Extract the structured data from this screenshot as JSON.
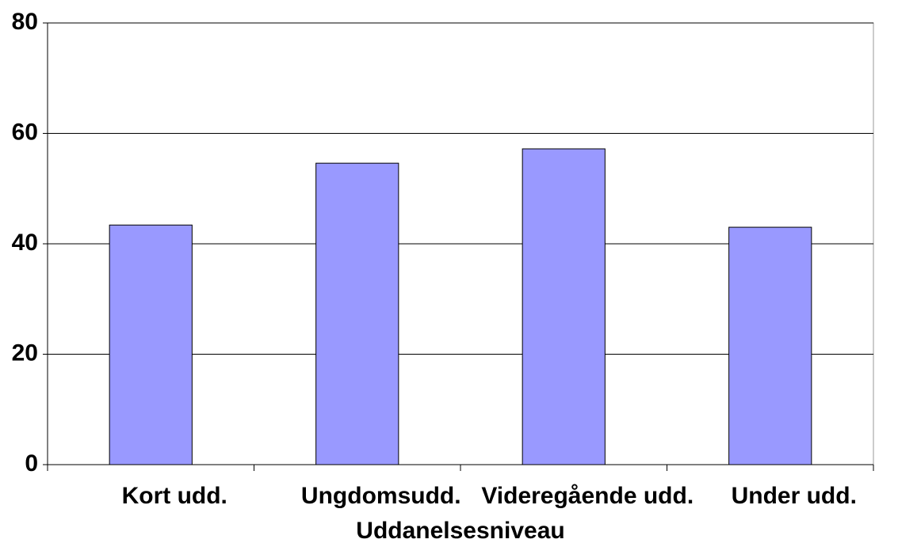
{
  "chart_data": {
    "type": "bar",
    "x_label": "Uddanelsesniveau",
    "categories": [
      "Kort udd.",
      "Ungdomsudd.",
      "Videregående udd.",
      "Under udd."
    ],
    "values": [
      43.4,
      54.6,
      57.2,
      43.0
    ],
    "color": "#9999ff",
    "ylim": [
      0,
      80
    ],
    "yticks": [
      0,
      20,
      40,
      60,
      80
    ],
    "grid": true
  }
}
